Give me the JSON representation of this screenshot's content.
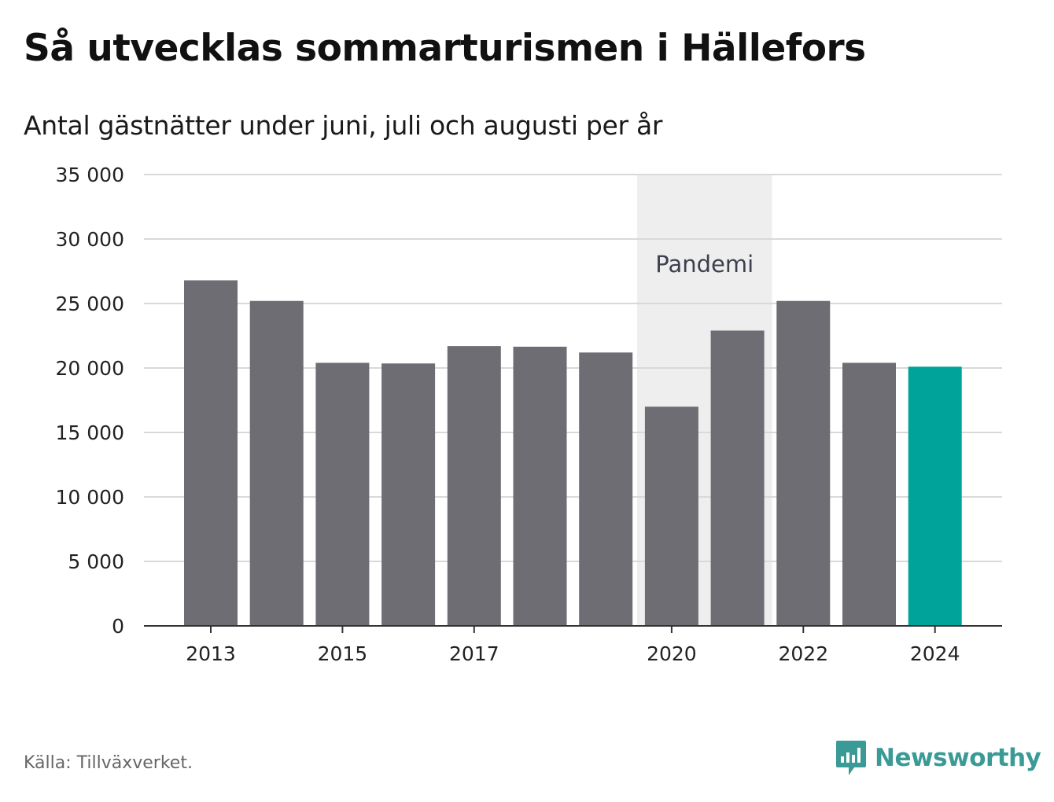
{
  "title": "Så utvecklas sommarturismen i Hällefors",
  "subtitle": "Antal gästnätter under juni, juli och augusti per år",
  "source": "Källa: Tillväxverket.",
  "brand": {
    "name": "Newsworthy",
    "icon": "newsworthy-logo-icon",
    "color": "#3a9a96"
  },
  "chart_data": {
    "type": "bar",
    "x": [
      2013,
      2014,
      2015,
      2016,
      2017,
      2018,
      2019,
      2020,
      2021,
      2022,
      2023,
      2024
    ],
    "values": [
      26800,
      25200,
      20400,
      20350,
      21700,
      21650,
      21200,
      17000,
      22900,
      25200,
      20400,
      20100
    ],
    "ylim": [
      0,
      35000
    ],
    "yticks": [
      0,
      5000,
      10000,
      15000,
      20000,
      25000,
      30000,
      35000
    ],
    "ytick_labels": [
      "0",
      "5 000",
      "10 000",
      "15 000",
      "20 000",
      "25 000",
      "30 000",
      "35 000"
    ],
    "xticks": [
      "2013",
      "2015",
      "2017",
      "2020",
      "2022",
      "2024"
    ],
    "highlight": {
      "x": 2024,
      "color": "#00a39a"
    },
    "bar_color": "#6e6d73",
    "grid": true,
    "annotation": {
      "label": "Pandemi",
      "x_start": 2020,
      "x_end": 2021,
      "color": "#eeeeee"
    }
  }
}
